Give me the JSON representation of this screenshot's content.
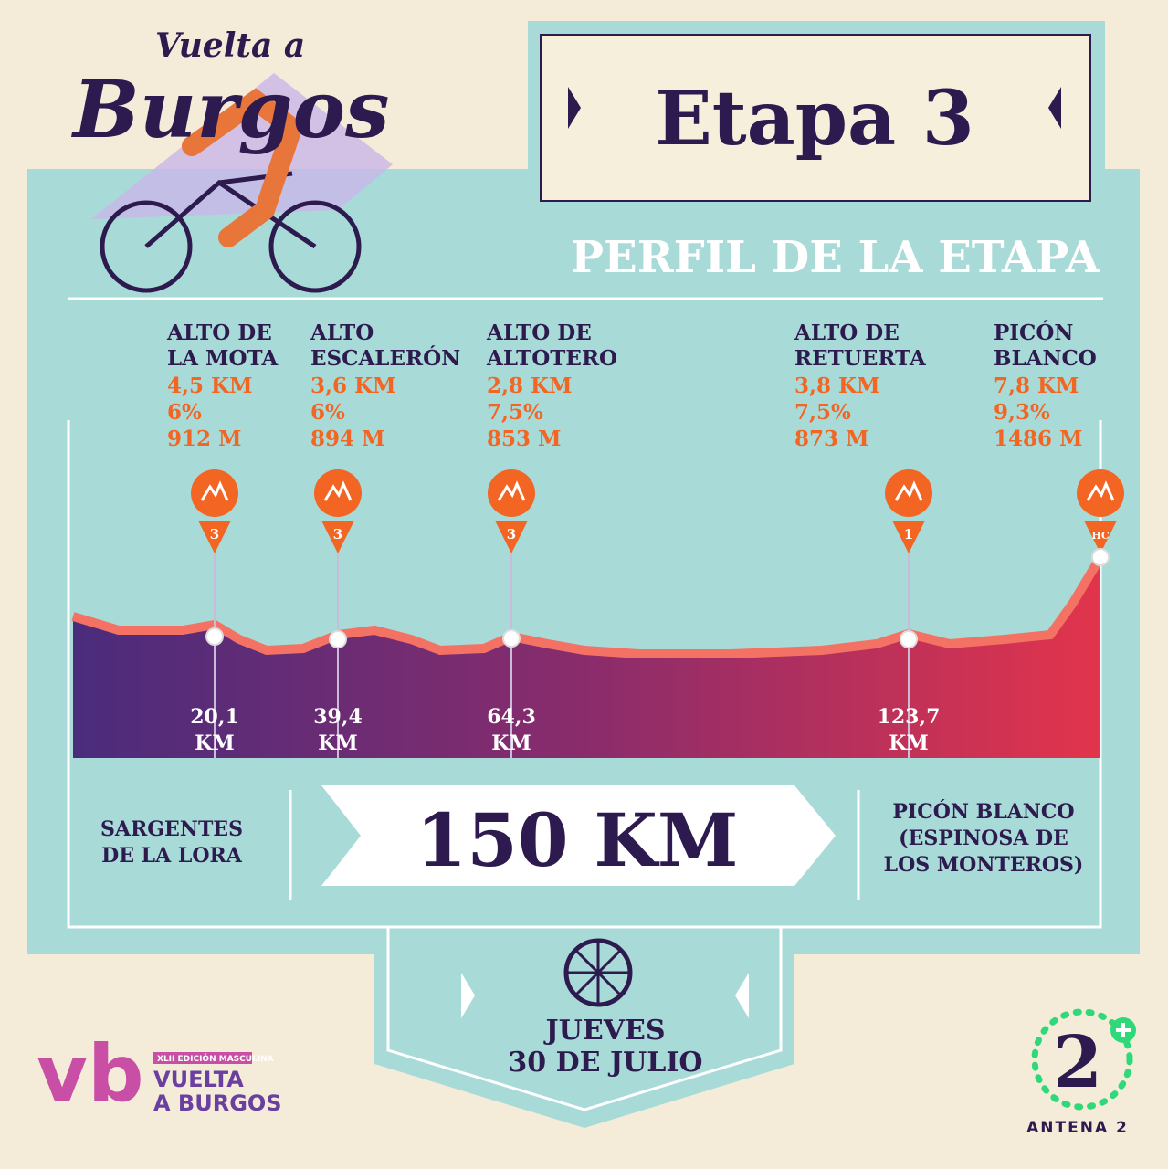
{
  "header": {
    "logo_top": "Vuelta a",
    "logo_main": "Burgos",
    "stage": "Etapa 3",
    "subtitle": "PERFIL DE LA ETAPA"
  },
  "climbs": [
    {
      "name": [
        "ALTO DE",
        "LA MOTA"
      ],
      "length": "4,5 KM",
      "gradient": "6%",
      "altitude": "912 M",
      "category": "3",
      "marker": [
        "20,1",
        "KM"
      ]
    },
    {
      "name": [
        "ALTO",
        "ESCALERÓN"
      ],
      "length": "3,6 KM",
      "gradient": "6%",
      "altitude": "894 M",
      "category": "3",
      "marker": [
        "39,4",
        "KM"
      ]
    },
    {
      "name": [
        "ALTO DE",
        "ALTOTERO"
      ],
      "length": "2,8 KM",
      "gradient": "7,5%",
      "altitude": "853 M",
      "category": "3",
      "marker": [
        "64,3",
        "KM"
      ]
    },
    {
      "name": [
        "ALTO DE",
        "RETUERTA"
      ],
      "length": "3,8 KM",
      "gradient": "7,5%",
      "altitude": "873 M",
      "category": "1",
      "marker": [
        "123,7",
        "KM"
      ]
    },
    {
      "name": [
        "PICÓN",
        "BLANCO"
      ],
      "length": "7,8 KM",
      "gradient": "9,3%",
      "altitude": "1486 M",
      "category": "HC"
    }
  ],
  "route": {
    "start": [
      "SARGENTES",
      "DE LA LORA"
    ],
    "distance": "150 KM",
    "finish": [
      "PICÓN BLANCO",
      "(ESPINOSA DE",
      "LOS MONTEROS)"
    ]
  },
  "date": [
    "JUEVES",
    "30 DE JULIO"
  ],
  "footer": {
    "vb_mark": "vb",
    "edition": "XLII EDICIÓN MASCULINA",
    "brand": [
      "VUELTA",
      "A BURGOS"
    ],
    "tv_number": "2",
    "tv_name": "ANTENA 2"
  }
}
